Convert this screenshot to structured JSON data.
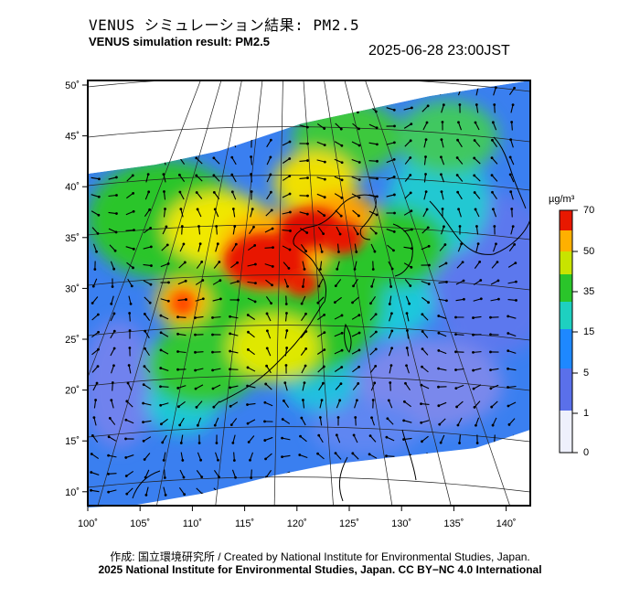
{
  "header": {
    "title_ja": "VENUS シミュレーション結果: PM2.5",
    "title_en": "VENUS simulation result: PM2.5",
    "timestamp": "2025-06-28 23:00JST"
  },
  "map": {
    "lat_labels": [
      "50˚",
      "45˚",
      "40˚",
      "35˚",
      "30˚",
      "25˚",
      "20˚",
      "15˚",
      "10˚"
    ],
    "lon_labels": [
      "100˚",
      "105˚",
      "110˚",
      "115˚",
      "120˚",
      "125˚",
      "130˚",
      "135˚",
      "140˚"
    ],
    "variable": "PM2.5",
    "wind_vectors": true
  },
  "colorbar": {
    "unit": "µg/m³",
    "labels": [
      "70",
      "50",
      "35",
      "15",
      "5",
      "1",
      "0"
    ],
    "colors": [
      "#d40000",
      "#ff5a00",
      "#ffb000",
      "#f0e800",
      "#2ac52a",
      "#1ee0c8",
      "#1e78ff",
      "#4848e8",
      "#b8c0f8",
      "#ffffff"
    ]
  },
  "footer": {
    "credit": "作成: 国立環境研究所 / Created by National Institute for Environmental Studies, Japan.",
    "license": "2025 National Institute for Environmental Studies, Japan. CC BY−NC 4.0 International"
  }
}
